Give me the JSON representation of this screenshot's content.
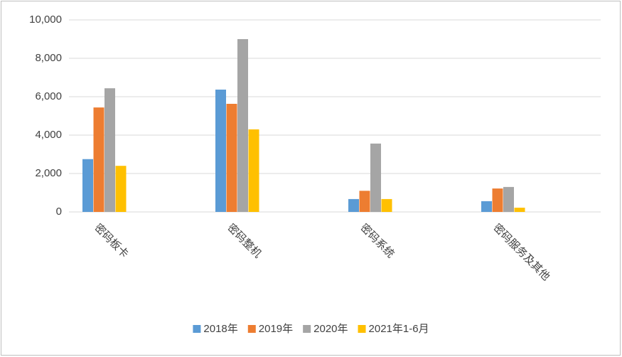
{
  "chart_data": {
    "type": "bar",
    "categories": [
      "密码板卡",
      "密码整机",
      "密码系统",
      "密码服务及其他"
    ],
    "series": [
      {
        "name": "2018年",
        "color": "#5b9bd5",
        "values": [
          2750,
          6370,
          670,
          560
        ]
      },
      {
        "name": "2019年",
        "color": "#ed7d31",
        "values": [
          5440,
          5630,
          1100,
          1220
        ]
      },
      {
        "name": "2020年",
        "color": "#a5a5a5",
        "values": [
          6440,
          9000,
          3560,
          1300
        ]
      },
      {
        "name": "2021年1-6月",
        "color": "#ffc000",
        "values": [
          2400,
          4300,
          670,
          220
        ]
      }
    ],
    "ylim": [
      0,
      10000
    ],
    "yticks": [
      0,
      {
        "value": 2000,
        "label": "2,000"
      },
      {
        "value": 4000,
        "label": "4,000"
      },
      {
        "value": 6000,
        "label": "6,000"
      },
      {
        "value": 8000,
        "label": "8,000"
      },
      {
        "value": 10000,
        "label": "10,000"
      }
    ],
    "grid": true,
    "legend": "bottom"
  }
}
